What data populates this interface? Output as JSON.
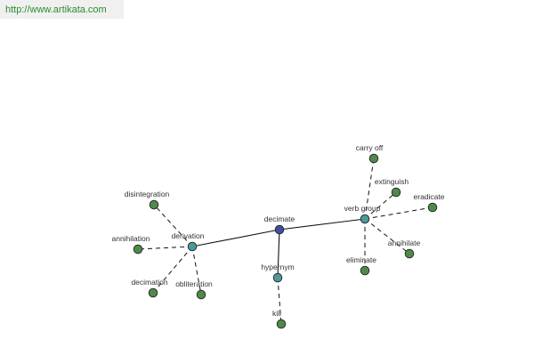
{
  "banner": {
    "url_text": "http://www.artikata.com"
  },
  "colors": {
    "center_node": "#3f4fa0",
    "relation_node": "#4a9a9a",
    "word_node": "#4f8a4a",
    "edge": "#111111",
    "banner_text": "#2e8b2e"
  },
  "graph": {
    "center": {
      "id": "decimate",
      "label": "decimate"
    },
    "relations": [
      {
        "id": "derivation",
        "label": "derivation"
      },
      {
        "id": "hypernym",
        "label": "hypernym"
      },
      {
        "id": "verb-group",
        "label": "verb group"
      }
    ],
    "words": [
      {
        "id": "disintegration",
        "label": "disintegration",
        "relation": "derivation"
      },
      {
        "id": "annihilation",
        "label": "annihilation",
        "relation": "derivation"
      },
      {
        "id": "decimation",
        "label": "decimation",
        "relation": "derivation"
      },
      {
        "id": "obliteration",
        "label": "obliteration",
        "relation": "derivation"
      },
      {
        "id": "kill",
        "label": "kill",
        "relation": "hypernym"
      },
      {
        "id": "carry-off",
        "label": "carry off",
        "relation": "verb-group"
      },
      {
        "id": "extinguish",
        "label": "extinguish",
        "relation": "verb-group"
      },
      {
        "id": "eradicate",
        "label": "eradicate",
        "relation": "verb-group"
      },
      {
        "id": "annihilate",
        "label": "annihilate",
        "relation": "verb-group"
      },
      {
        "id": "eliminate",
        "label": "eliminate",
        "relation": "verb-group"
      }
    ]
  }
}
